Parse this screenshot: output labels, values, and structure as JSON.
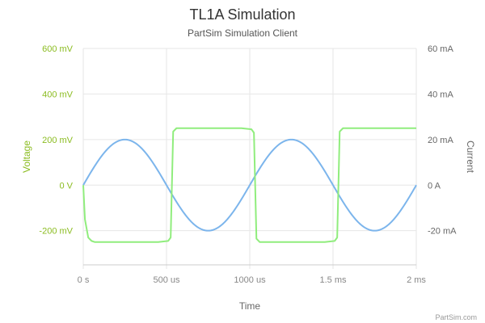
{
  "chart_data": {
    "type": "line",
    "title": "TL1A Simulation",
    "subtitle": "PartSim Simulation Client",
    "xlabel": "Time",
    "ylabel_left": "Voltage",
    "ylabel_right": "Current",
    "credit": "PartSim.com",
    "x_unit": "s",
    "xlim": [
      0,
      0.002
    ],
    "x_ticks": [
      {
        "value": 0,
        "label": "0 s"
      },
      {
        "value": 0.0005,
        "label": "500 us"
      },
      {
        "value": 0.001,
        "label": "1000 us"
      },
      {
        "value": 0.0015,
        "label": "1.5 ms"
      },
      {
        "value": 0.002,
        "label": "2 ms"
      }
    ],
    "y_left": {
      "unit": "V",
      "ylim": [
        -0.35,
        0.6
      ],
      "ticks": [
        {
          "value": 0.6,
          "label": "600 mV"
        },
        {
          "value": 0.4,
          "label": "400 mV"
        },
        {
          "value": 0.2,
          "label": "200 mV"
        },
        {
          "value": 0,
          "label": "0 V"
        },
        {
          "value": -0.2,
          "label": "-200 mV"
        }
      ]
    },
    "y_right": {
      "unit": "A",
      "ylim": [
        -0.035,
        0.06
      ],
      "ticks": [
        {
          "value": 0.06,
          "label": "60 mA"
        },
        {
          "value": 0.04,
          "label": "40 mA"
        },
        {
          "value": 0.02,
          "label": "20 mA"
        },
        {
          "value": 0,
          "label": "0 A"
        },
        {
          "value": -0.02,
          "label": "-20 mA"
        }
      ]
    },
    "grid": true,
    "series": [
      {
        "axis": "right",
        "color": "#7cb5ec",
        "x": [
          0,
          0.0001,
          0.00025,
          0.0004,
          0.0005,
          0.0006,
          0.00075,
          0.0009,
          0.001,
          0.0011,
          0.00125,
          0.0014,
          0.0015,
          0.0016,
          0.00175,
          0.0019,
          0.002
        ],
        "y": [
          0,
          0.0118,
          0.02,
          0.0118,
          0,
          -0.0118,
          -0.02,
          -0.0118,
          0,
          0.0118,
          0.02,
          0.0118,
          0,
          -0.0118,
          -0.02,
          -0.0118,
          0
        ]
      },
      {
        "axis": "left",
        "color": "#90ed7d",
        "x": [
          0,
          1e-05,
          3e-05,
          5e-05,
          7e-05,
          0.00015,
          0.00045,
          0.00051,
          0.000525,
          0.00054,
          0.00056,
          0.00065,
          0.00095,
          0.00101,
          0.001025,
          0.00104,
          0.00106,
          0.00115,
          0.00145,
          0.00151,
          0.001525,
          0.00154,
          0.00156,
          0.0017,
          0.002
        ],
        "y": [
          0,
          -0.15,
          -0.23,
          -0.245,
          -0.25,
          -0.25,
          -0.25,
          -0.245,
          -0.23,
          0.235,
          0.25,
          0.25,
          0.25,
          0.245,
          0.23,
          -0.235,
          -0.25,
          -0.25,
          -0.25,
          -0.245,
          -0.23,
          0.235,
          0.25,
          0.25,
          0.25
        ]
      }
    ],
    "colors": {
      "voltage_axis": "#8bbc21",
      "grid": "#dddddd",
      "title": "#333333"
    }
  }
}
